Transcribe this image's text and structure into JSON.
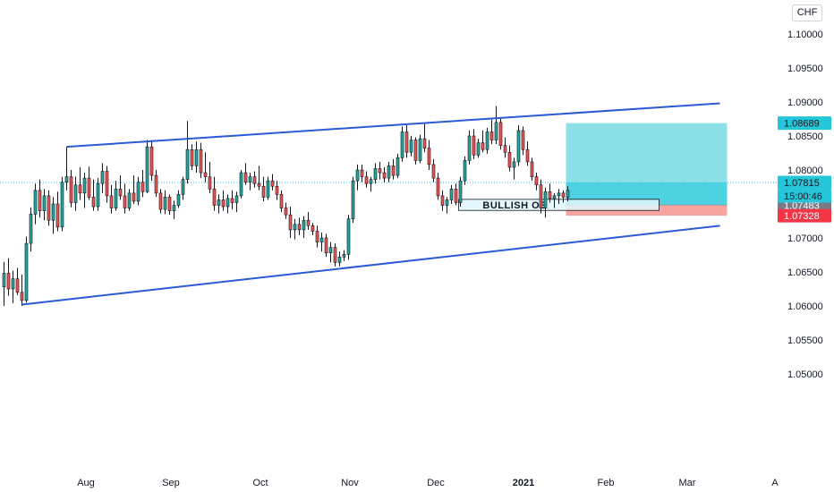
{
  "currency": "CHF",
  "chart_data": {
    "type": "candlestick",
    "title": "",
    "y_range": [
      1.0475,
      1.1035
    ],
    "y_ticks": [
      "1.10000",
      "1.09500",
      "1.09000",
      "1.08500",
      "1.08000",
      "1.07500",
      "1.07000",
      "1.06500",
      "1.06000",
      "1.05500",
      "1.05000"
    ],
    "x_ticks": [
      "Aug",
      "Sep",
      "Oct",
      "Nov",
      "Dec",
      "2021",
      "Feb",
      "Mar",
      "A"
    ],
    "x_ticks_bold": [
      "2021"
    ],
    "ohlc": [
      [
        1.0628,
        1.0665,
        1.06,
        1.0648
      ],
      [
        1.0648,
        1.067,
        1.0615,
        1.0625
      ],
      [
        1.0625,
        1.0652,
        1.0604,
        1.064
      ],
      [
        1.064,
        1.0656,
        1.0616,
        1.062
      ],
      [
        1.062,
        1.0646,
        1.06,
        1.0608
      ],
      [
        1.0608,
        1.0702,
        1.0605,
        1.0692
      ],
      [
        1.0692,
        1.0745,
        1.068,
        1.0735
      ],
      [
        1.0735,
        1.078,
        1.072,
        1.077
      ],
      [
        1.077,
        1.0786,
        1.073,
        1.074
      ],
      [
        1.074,
        1.0772,
        1.0726,
        1.0762
      ],
      [
        1.0762,
        1.077,
        1.0718,
        1.0726
      ],
      [
        1.0726,
        1.076,
        1.0706,
        1.075
      ],
      [
        1.075,
        1.0768,
        1.071,
        1.0716
      ],
      [
        1.0716,
        1.079,
        1.071,
        1.0782
      ],
      [
        1.0782,
        1.0834,
        1.077,
        1.079
      ],
      [
        1.079,
        1.08,
        1.0745,
        1.0752
      ],
      [
        1.0752,
        1.079,
        1.074,
        1.0778
      ],
      [
        1.0778,
        1.0804,
        1.0756,
        1.0766
      ],
      [
        1.0766,
        1.0796,
        1.0744,
        1.0788
      ],
      [
        1.0788,
        1.0805,
        1.0756,
        1.076
      ],
      [
        1.076,
        1.0786,
        1.074,
        1.0746
      ],
      [
        1.0746,
        1.0788,
        1.074,
        1.078
      ],
      [
        1.078,
        1.081,
        1.0766,
        1.0798
      ],
      [
        1.0798,
        1.0806,
        1.0752,
        1.0762
      ],
      [
        1.0762,
        1.0778,
        1.0736,
        1.0744
      ],
      [
        1.0744,
        1.0784,
        1.074,
        1.0772
      ],
      [
        1.0772,
        1.0792,
        1.0756,
        1.0762
      ],
      [
        1.0762,
        1.078,
        1.0736,
        1.0744
      ],
      [
        1.0744,
        1.0772,
        1.074,
        1.0766
      ],
      [
        1.0766,
        1.0792,
        1.075,
        1.0754
      ],
      [
        1.0754,
        1.079,
        1.0748,
        1.0782
      ],
      [
        1.0782,
        1.08,
        1.076,
        1.0768
      ],
      [
        1.0768,
        1.0844,
        1.0766,
        1.0834
      ],
      [
        1.0834,
        1.0844,
        1.0784,
        1.0792
      ],
      [
        1.0792,
        1.08,
        1.076,
        1.0766
      ],
      [
        1.0766,
        1.0772,
        1.0736,
        1.0742
      ],
      [
        1.0742,
        1.077,
        1.0735,
        1.076
      ],
      [
        1.076,
        1.0764,
        1.0734,
        1.074
      ],
      [
        1.074,
        1.0755,
        1.0728,
        1.0748
      ],
      [
        1.0748,
        1.077,
        1.0744,
        1.0764
      ],
      [
        1.0764,
        1.079,
        1.0756,
        1.0786
      ],
      [
        1.0786,
        1.0872,
        1.078,
        1.083
      ],
      [
        1.083,
        1.0838,
        1.08,
        1.0806
      ],
      [
        1.0806,
        1.0842,
        1.0796,
        1.083
      ],
      [
        1.083,
        1.084,
        1.0788,
        1.0796
      ],
      [
        1.0796,
        1.0826,
        1.0782,
        1.079
      ],
      [
        1.079,
        1.0812,
        1.0766,
        1.0772
      ],
      [
        1.0772,
        1.079,
        1.074,
        1.0748
      ],
      [
        1.0748,
        1.0764,
        1.0736,
        1.0756
      ],
      [
        1.0756,
        1.077,
        1.074,
        1.0746
      ],
      [
        1.0746,
        1.0764,
        1.0736,
        1.0758
      ],
      [
        1.0758,
        1.077,
        1.0742,
        1.0752
      ],
      [
        1.0752,
        1.0768,
        1.0738,
        1.0762
      ],
      [
        1.0762,
        1.08,
        1.0758,
        1.0796
      ],
      [
        1.0796,
        1.081,
        1.0778,
        1.0782
      ],
      [
        1.0782,
        1.0796,
        1.077,
        1.079
      ],
      [
        1.079,
        1.0798,
        1.0774,
        1.078
      ],
      [
        1.078,
        1.0806,
        1.077,
        1.0776
      ],
      [
        1.0776,
        1.079,
        1.0754,
        1.076
      ],
      [
        1.076,
        1.079,
        1.0756,
        1.0784
      ],
      [
        1.0784,
        1.0794,
        1.077,
        1.0776
      ],
      [
        1.0776,
        1.0784,
        1.0756,
        1.0764
      ],
      [
        1.0764,
        1.077,
        1.0738,
        1.0744
      ],
      [
        1.0744,
        1.0752,
        1.0728,
        1.0734
      ],
      [
        1.0734,
        1.0746,
        1.07,
        1.0712
      ],
      [
        1.0712,
        1.0728,
        1.0698,
        1.072
      ],
      [
        1.072,
        1.073,
        1.0704,
        1.0712
      ],
      [
        1.0712,
        1.0732,
        1.07,
        1.0726
      ],
      [
        1.0726,
        1.0738,
        1.0712,
        1.0718
      ],
      [
        1.0718,
        1.0722,
        1.0704,
        1.071
      ],
      [
        1.071,
        1.0718,
        1.0686,
        1.0694
      ],
      [
        1.0694,
        1.0708,
        1.068,
        1.07
      ],
      [
        1.07,
        1.0706,
        1.0672,
        1.0678
      ],
      [
        1.0678,
        1.0694,
        1.0664,
        1.0686
      ],
      [
        1.0686,
        1.0692,
        1.0658,
        1.0664
      ],
      [
        1.0664,
        1.068,
        1.0658,
        1.0672
      ],
      [
        1.0672,
        1.0682,
        1.0666,
        1.0676
      ],
      [
        1.0676,
        1.0734,
        1.0668,
        1.0728
      ],
      [
        1.0728,
        1.079,
        1.0722,
        1.0784
      ],
      [
        1.0784,
        1.0808,
        1.077,
        1.08
      ],
      [
        1.08,
        1.0808,
        1.0782,
        1.079
      ],
      [
        1.079,
        1.0798,
        1.0774,
        1.078
      ],
      [
        1.078,
        1.079,
        1.0768,
        1.0786
      ],
      [
        1.0786,
        1.081,
        1.078,
        1.0802
      ],
      [
        1.0802,
        1.0812,
        1.0786,
        1.0796
      ],
      [
        1.0796,
        1.0804,
        1.0782,
        1.0788
      ],
      [
        1.0788,
        1.0812,
        1.0782,
        1.0806
      ],
      [
        1.0806,
        1.0816,
        1.0786,
        1.0792
      ],
      [
        1.0792,
        1.0824,
        1.0788,
        1.0818
      ],
      [
        1.0818,
        1.0864,
        1.0812,
        1.0856
      ],
      [
        1.0856,
        1.0866,
        1.0818,
        1.0826
      ],
      [
        1.0826,
        1.085,
        1.082,
        1.0844
      ],
      [
        1.0844,
        1.0848,
        1.0808,
        1.0814
      ],
      [
        1.0814,
        1.0852,
        1.081,
        1.0846
      ],
      [
        1.0846,
        1.0868,
        1.0826,
        1.0832
      ],
      [
        1.0832,
        1.0844,
        1.08,
        1.0808
      ],
      [
        1.0808,
        1.0816,
        1.0782,
        1.0788
      ],
      [
        1.0788,
        1.0796,
        1.0756,
        1.0762
      ],
      [
        1.0762,
        1.077,
        1.074,
        1.0748
      ],
      [
        1.0748,
        1.076,
        1.0736,
        1.0756
      ],
      [
        1.0756,
        1.0778,
        1.075,
        1.0772
      ],
      [
        1.0772,
        1.078,
        1.0748,
        1.0752
      ],
      [
        1.0752,
        1.079,
        1.0746,
        1.0784
      ],
      [
        1.0784,
        1.082,
        1.0778,
        1.0814
      ],
      [
        1.0814,
        1.0858,
        1.0808,
        1.085
      ],
      [
        1.085,
        1.086,
        1.0816,
        1.0822
      ],
      [
        1.0822,
        1.0846,
        1.0818,
        1.084
      ],
      [
        1.084,
        1.0858,
        1.0826,
        1.083
      ],
      [
        1.083,
        1.0862,
        1.0824,
        1.0856
      ],
      [
        1.0856,
        1.0874,
        1.0838,
        1.0844
      ],
      [
        1.0844,
        1.0894,
        1.0838,
        1.087
      ],
      [
        1.087,
        1.0876,
        1.083,
        1.0836
      ],
      [
        1.0836,
        1.0848,
        1.0818,
        1.0826
      ],
      [
        1.0826,
        1.0836,
        1.0798,
        1.0804
      ],
      [
        1.0804,
        1.0818,
        1.0786,
        1.0812
      ],
      [
        1.0812,
        1.0866,
        1.0806,
        1.0858
      ],
      [
        1.0858,
        1.0864,
        1.0822,
        1.083
      ],
      [
        1.083,
        1.0842,
        1.0806,
        1.0812
      ],
      [
        1.0812,
        1.0818,
        1.0784,
        1.079
      ],
      [
        1.079,
        1.0796,
        1.077,
        1.0778
      ],
      [
        1.0778,
        1.0786,
        1.0736,
        1.0744
      ],
      [
        1.0744,
        1.0774,
        1.073,
        1.0768
      ],
      [
        1.0768,
        1.078,
        1.0752,
        1.0758
      ],
      [
        1.0758,
        1.0766,
        1.0744,
        1.0762
      ],
      [
        1.0762,
        1.0772,
        1.075,
        1.0766
      ],
      [
        1.0766,
        1.077,
        1.0752,
        1.076
      ],
      [
        1.076,
        1.0776,
        1.0754,
        1.077
      ]
    ],
    "trendlines": [
      {
        "name": "upper-trendline",
        "from": [
          14,
          1.0834
        ],
        "to": [
          160,
          1.0898
        ]
      },
      {
        "name": "lower-trendline",
        "from": [
          4,
          1.0602
        ],
        "to": [
          160,
          1.0718
        ]
      }
    ],
    "position": {
      "entry": 1.07483,
      "target": 1.08689,
      "stop": 1.07328,
      "start_index": 126,
      "end_index": 161
    },
    "order_block": {
      "label": "BULLISH OB",
      "top": 1.07568,
      "bottom": 1.07405,
      "start_index": 102,
      "end_index": 146
    },
    "current_price": 1.07815,
    "countdown": "15:00:46",
    "price_tags": [
      {
        "label": "1.08689",
        "value": 1.08689,
        "bg": "#26c6da",
        "fg": "#131722"
      },
      {
        "label": "1.07815",
        "value": 1.07815,
        "bg": "#26c6da",
        "fg": "#131722"
      },
      {
        "label": "1.07483",
        "value": 1.07483,
        "bg": "#787b86",
        "fg": "#ffffff"
      },
      {
        "label": "1.07328",
        "value": 1.07328,
        "bg": "#f23645",
        "fg": "#ffffff"
      }
    ],
    "colors": {
      "up": "#26a69a",
      "down": "#ef5350",
      "wick": "#131722",
      "trendline": "#2a5ad4",
      "target_zone": "#8ce1e8",
      "entry_zone": "#4dd2e2",
      "stop_zone": "#f7a39f",
      "order_block": "#e0f7fa",
      "current_line": "#26c6da"
    }
  }
}
